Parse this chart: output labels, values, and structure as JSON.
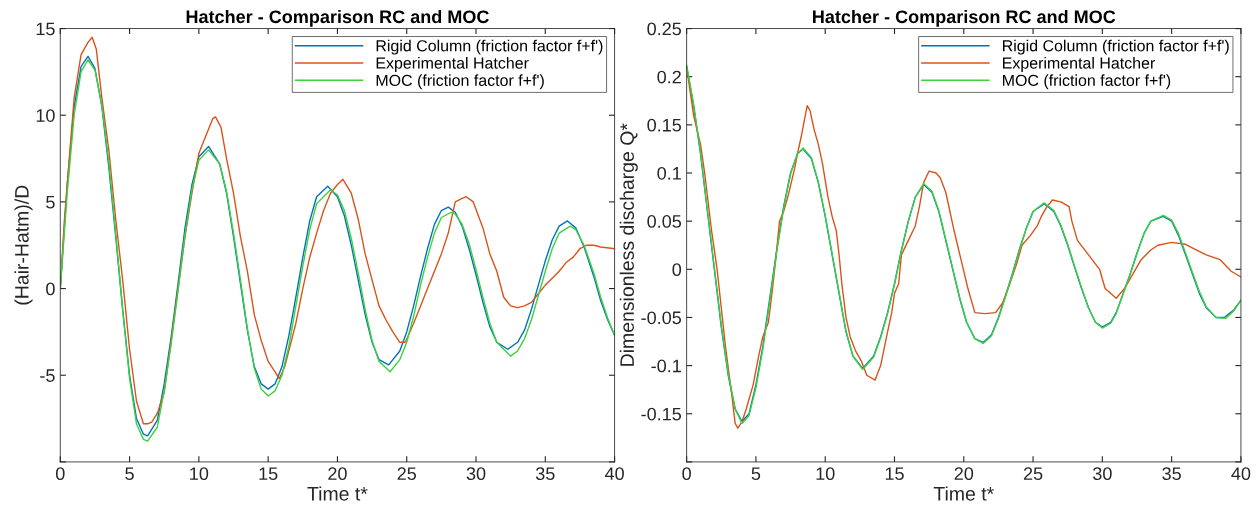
{
  "chart_data": [
    {
      "type": "line",
      "title": "Hatcher - Comparison RC and MOC",
      "xlabel": "Time t*",
      "ylabel": "(Hair-Hatm)/D",
      "xlim": [
        0,
        40
      ],
      "xticks": [
        0,
        5,
        10,
        15,
        20,
        25,
        30,
        35,
        40
      ],
      "ylim": [
        -10,
        15
      ],
      "yticks": [
        {
          "value": -10,
          "label": null
        },
        -5,
        0,
        5,
        10,
        15
      ],
      "legend": "top right",
      "grid": false,
      "marker": "none",
      "line_style": "solid",
      "series": [
        {
          "name": "Rigid Column (friction factor f+f')",
          "color": "#0072bd",
          "x": [
            0,
            0.5,
            1,
            1.5,
            2,
            2.5,
            3,
            3.5,
            4,
            4.5,
            5,
            5.5,
            6,
            6.3,
            7,
            7.5,
            8,
            8.5,
            9,
            9.5,
            10,
            10.7,
            11.5,
            12,
            12.5,
            13,
            13.5,
            14,
            14.5,
            15,
            15.5,
            16,
            16.5,
            17,
            17.5,
            18,
            18.5,
            19.3,
            20,
            20.5,
            21,
            21.5,
            22,
            22.5,
            23,
            23.7,
            24.5,
            25,
            25.5,
            26,
            26.5,
            27,
            27.5,
            28,
            28.5,
            29,
            29.5,
            30,
            30.5,
            31,
            31.5,
            32.3,
            33,
            33.5,
            34,
            34.5,
            35,
            35.5,
            36,
            36.6,
            37.2,
            37.8,
            38.5,
            39,
            39.5,
            40
          ],
          "values": [
            0,
            6,
            10.5,
            12.8,
            13.4,
            12.7,
            10.5,
            7,
            3,
            -1.2,
            -5,
            -7.5,
            -8.4,
            -8.5,
            -7.6,
            -5.5,
            -2.8,
            0.3,
            3.5,
            6,
            7.6,
            8.2,
            7.2,
            5.5,
            3,
            0.3,
            -2.4,
            -4.5,
            -5.5,
            -5.8,
            -5.5,
            -4.5,
            -2.7,
            -0.5,
            1.8,
            3.9,
            5.3,
            5.9,
            5.3,
            4.2,
            2.5,
            0.5,
            -1.5,
            -3.1,
            -4.1,
            -4.4,
            -3.6,
            -2.5,
            -1,
            0.7,
            2.3,
            3.7,
            4.5,
            4.7,
            4.4,
            3.6,
            2.3,
            0.8,
            -0.8,
            -2.2,
            -3.1,
            -3.5,
            -3.1,
            -2.4,
            -1.2,
            0.2,
            1.6,
            2.8,
            3.6,
            3.9,
            3.5,
            2.4,
            0.7,
            -0.7,
            -1.8,
            -2.7
          ]
        },
        {
          "name": "Experimental Hatcher",
          "color": "#d95319",
          "x": [
            0,
            0.3,
            0.7,
            1,
            1.5,
            2,
            2.3,
            2.6,
            3,
            3.5,
            4,
            4.5,
            5,
            5.5,
            6,
            6.3,
            6.6,
            7,
            7.5,
            8,
            8.5,
            9,
            9.5,
            10,
            10.5,
            11,
            11.2,
            11.6,
            12,
            12.5,
            13,
            13.5,
            14,
            14.5,
            15,
            15.5,
            15.8,
            16.2,
            17,
            17.5,
            18,
            18.5,
            19,
            19.5,
            20,
            20.4,
            21,
            21.5,
            22,
            22.5,
            23,
            23.5,
            24,
            24.5,
            24.9,
            25.5,
            26,
            26.5,
            27,
            27.5,
            28,
            28.5,
            29,
            29.3,
            29.8,
            30.5,
            31,
            31.5,
            32,
            32.5,
            33,
            33.5,
            34,
            34.5,
            35,
            35.5,
            36,
            36.5,
            37,
            37.5,
            38,
            38.5,
            39,
            40
          ],
          "values": [
            0,
            4,
            8,
            11,
            13.5,
            14.2,
            14.5,
            13.8,
            11,
            8,
            4,
            0.5,
            -3.5,
            -6.5,
            -7.8,
            -7.8,
            -7.7,
            -7.2,
            -6,
            -3,
            0,
            3,
            5.5,
            7.8,
            8.8,
            9.8,
            9.9,
            9.3,
            7.5,
            5.5,
            3,
            1,
            -1.5,
            -3,
            -4.2,
            -4.8,
            -5.2,
            -4.5,
            -2,
            0,
            1.8,
            3.2,
            4.5,
            5.5,
            6,
            6.3,
            5.5,
            4,
            2,
            0.5,
            -1,
            -1.8,
            -2.5,
            -3.1,
            -3.1,
            -2,
            -1,
            0,
            1,
            2,
            3.2,
            5,
            5.2,
            5.3,
            5,
            3.5,
            2,
            1,
            -0.5,
            -1,
            -1.1,
            -1,
            -0.8,
            -0.3,
            0.2,
            0.6,
            1,
            1.5,
            1.8,
            2.3,
            2.5,
            2.5,
            2.4,
            2.3
          ]
        },
        {
          "name": "MOC (friction factor f+f')",
          "color": "#3ed13e",
          "x": [
            0,
            0.5,
            1,
            1.5,
            2,
            2.5,
            3,
            3.5,
            4,
            4.5,
            5,
            5.5,
            6,
            6.3,
            7,
            7.5,
            8,
            8.5,
            9,
            9.5,
            10,
            10.7,
            11.5,
            12,
            12.5,
            13,
            13.5,
            14,
            14.5,
            15,
            15.5,
            16,
            16.5,
            17,
            17.5,
            18,
            18.5,
            19.5,
            20,
            20.5,
            21,
            21.5,
            22,
            22.5,
            23,
            23.8,
            24.5,
            25,
            25.5,
            26,
            26.5,
            27,
            27.5,
            28.2,
            28.5,
            29,
            29.5,
            30,
            30.5,
            31,
            31.5,
            32.5,
            33,
            33.5,
            34,
            34.5,
            35,
            35.5,
            36,
            36.8,
            37.2,
            37.8,
            38.5,
            39,
            39.5,
            40
          ],
          "values": [
            0,
            5.5,
            10,
            12.5,
            13.2,
            12.6,
            10.6,
            7.3,
            3.2,
            -1.2,
            -5.2,
            -7.8,
            -8.7,
            -8.8,
            -8,
            -5.9,
            -3.2,
            -0.1,
            3.1,
            5.7,
            7.4,
            8,
            7.2,
            5.6,
            3.2,
            0.5,
            -2.3,
            -4.6,
            -5.8,
            -6.2,
            -5.9,
            -5,
            -3.3,
            -1,
            1.3,
            3.4,
            4.9,
            5.7,
            5.4,
            4.5,
            2.9,
            0.9,
            -1.2,
            -3,
            -4.2,
            -4.8,
            -4.1,
            -3.1,
            -1.6,
            0.2,
            1.8,
            3.2,
            4.1,
            4.4,
            4.3,
            3.7,
            2.6,
            1.1,
            -0.5,
            -2,
            -3.1,
            -3.9,
            -3.6,
            -2.9,
            -1.8,
            -0.4,
            1,
            2.3,
            3.2,
            3.6,
            3.4,
            2.5,
            0.9,
            -0.5,
            -1.7,
            -2.7
          ]
        }
      ]
    },
    {
      "type": "line",
      "title": "Hatcher - Comparison RC and MOC",
      "xlabel": "Time t*",
      "ylabel": "Dimensionless discharge Q*",
      "xlim": [
        0,
        40
      ],
      "xticks": [
        0,
        5,
        10,
        15,
        20,
        25,
        30,
        35,
        40
      ],
      "ylim": [
        -0.2,
        0.25
      ],
      "yticks": [
        {
          "value": -0.2,
          "label": null
        },
        -0.15,
        -0.1,
        -0.05,
        0,
        0.05,
        0.1,
        0.15,
        0.2,
        0.25
      ],
      "legend": "top right",
      "grid": false,
      "marker": "none",
      "line_style": "solid",
      "series": [
        {
          "name": "Rigid Column (friction factor f+f')",
          "color": "#0072bd",
          "x": [
            0,
            0.5,
            1,
            1.5,
            2,
            2.5,
            3,
            3.5,
            4,
            4.5,
            5,
            5.5,
            6,
            6.5,
            7,
            7.5,
            8,
            8.4,
            9,
            9.5,
            10,
            10.5,
            11,
            11.5,
            12,
            12.7,
            13.5,
            14,
            14.5,
            15,
            15.5,
            16,
            16.5,
            17.1,
            17.7,
            18.2,
            18.7,
            19.2,
            19.7,
            20.2,
            20.8,
            21.4,
            22,
            22.5,
            23,
            23.5,
            24,
            24.5,
            25,
            25.8,
            26.5,
            27,
            27.5,
            28,
            28.5,
            29,
            29.5,
            30,
            30.6,
            31,
            31.5,
            32,
            32.5,
            33,
            33.5,
            34.4,
            35,
            35.5,
            36,
            36.5,
            37,
            37.5,
            38.2,
            38.8,
            39.5,
            40
          ],
          "values": [
            0.21,
            0.17,
            0.12,
            0.06,
            0,
            -0.06,
            -0.11,
            -0.145,
            -0.158,
            -0.15,
            -0.12,
            -0.08,
            -0.03,
            0.02,
            0.065,
            0.1,
            0.12,
            0.125,
            0.115,
            0.09,
            0.055,
            0.015,
            -0.025,
            -0.065,
            -0.09,
            -0.103,
            -0.09,
            -0.07,
            -0.045,
            -0.015,
            0.02,
            0.05,
            0.075,
            0.088,
            0.08,
            0.06,
            0.03,
            0,
            -0.03,
            -0.055,
            -0.072,
            -0.076,
            -0.068,
            -0.05,
            -0.028,
            -0.005,
            0.02,
            0.042,
            0.06,
            0.068,
            0.06,
            0.045,
            0.025,
            0.002,
            -0.02,
            -0.04,
            -0.055,
            -0.06,
            -0.055,
            -0.045,
            -0.025,
            -0.005,
            0.017,
            0.037,
            0.05,
            0.055,
            0.05,
            0.035,
            0.015,
            -0.005,
            -0.025,
            -0.04,
            -0.05,
            -0.05,
            -0.042,
            -0.032
          ]
        },
        {
          "name": "Experimental Hatcher",
          "color": "#d95319",
          "x": [
            0,
            0.5,
            1,
            1.3,
            1.8,
            2.2,
            2.8,
            3.3,
            3.5,
            3.7,
            4,
            4.3,
            4.8,
            5.2,
            5.5,
            5.9,
            6.2,
            6.5,
            6.7,
            7,
            7.3,
            7.8,
            8,
            8.3,
            8.7,
            8.9,
            9.2,
            9.5,
            9.8,
            10.2,
            10.5,
            10.8,
            11,
            11.2,
            11.5,
            11.8,
            12.2,
            12.6,
            13,
            13.6,
            14,
            14.5,
            14.8,
            15,
            15.3,
            15.5,
            16,
            16.5,
            16.8,
            17.1,
            17.5,
            18,
            18.3,
            18.7,
            19,
            19.3,
            19.8,
            20.3,
            20.8,
            21.5,
            22.3,
            22.8,
            23.2,
            23.8,
            24.2,
            24.8,
            25.3,
            25.6,
            26,
            26.4,
            27,
            27.6,
            27.8,
            28.2,
            29,
            29.8,
            30.2,
            31,
            31.6,
            32,
            32.8,
            33.5,
            34,
            35,
            36,
            36.8,
            37.5,
            38.5,
            39.3,
            40
          ],
          "values": [
            0.21,
            0.16,
            0.13,
            0.1,
            0.04,
            0,
            -0.08,
            -0.135,
            -0.16,
            -0.165,
            -0.158,
            -0.145,
            -0.12,
            -0.09,
            -0.07,
            -0.055,
            -0.02,
            0.02,
            0.05,
            0.06,
            0.075,
            0.105,
            0.12,
            0.14,
            0.17,
            0.165,
            0.145,
            0.13,
            0.11,
            0.075,
            0.055,
            0.04,
            0.015,
            -0.015,
            -0.05,
            -0.07,
            -0.085,
            -0.095,
            -0.11,
            -0.115,
            -0.1,
            -0.065,
            -0.045,
            -0.025,
            -0.015,
            0.015,
            0.03,
            0.045,
            0.065,
            0.09,
            0.102,
            0.1,
            0.095,
            0.08,
            0.06,
            0.04,
            0.01,
            -0.02,
            -0.045,
            -0.046,
            -0.045,
            -0.035,
            -0.02,
            0.005,
            0.025,
            0.035,
            0.045,
            0.055,
            0.065,
            0.072,
            0.07,
            0.065,
            0.05,
            0.03,
            0.015,
            0,
            -0.02,
            -0.03,
            -0.02,
            -0.01,
            0.01,
            0.02,
            0.025,
            0.028,
            0.026,
            0.02,
            0.015,
            0.01,
            -0.002,
            -0.008
          ]
        },
        {
          "name": "MOC (friction factor f+f')",
          "color": "#3ed13e",
          "x": [
            0,
            0.5,
            1,
            1.5,
            2,
            2.5,
            3,
            3.5,
            4,
            4.5,
            5,
            5.5,
            6,
            6.5,
            7,
            7.5,
            8,
            8.4,
            9,
            9.5,
            10,
            10.5,
            11,
            11.5,
            12,
            12.7,
            13.5,
            14,
            14.5,
            15,
            15.5,
            16,
            16.5,
            17.1,
            17.7,
            18.2,
            18.7,
            19.2,
            19.7,
            20.2,
            20.8,
            21.4,
            22,
            22.5,
            23,
            23.5,
            24,
            24.5,
            25,
            25.8,
            26.5,
            27,
            27.5,
            28,
            28.5,
            29,
            29.5,
            30,
            30.6,
            31,
            31.5,
            32,
            32.5,
            33,
            33.5,
            34.4,
            35,
            35.5,
            36,
            36.5,
            37,
            37.5,
            38.2,
            38.9,
            39.5,
            40
          ],
          "values": [
            0.212,
            0.172,
            0.122,
            0.062,
            0.002,
            -0.058,
            -0.108,
            -0.145,
            -0.16,
            -0.152,
            -0.123,
            -0.083,
            -0.033,
            0.018,
            0.063,
            0.099,
            0.12,
            0.126,
            0.116,
            0.091,
            0.056,
            0.016,
            -0.024,
            -0.064,
            -0.09,
            -0.104,
            -0.091,
            -0.071,
            -0.046,
            -0.016,
            0.019,
            0.05,
            0.075,
            0.089,
            0.081,
            0.061,
            0.031,
            0.001,
            -0.029,
            -0.055,
            -0.072,
            -0.077,
            -0.069,
            -0.051,
            -0.029,
            -0.006,
            0.019,
            0.042,
            0.06,
            0.069,
            0.061,
            0.046,
            0.026,
            0.003,
            -0.019,
            -0.04,
            -0.055,
            -0.061,
            -0.056,
            -0.046,
            -0.026,
            -0.006,
            0.016,
            0.037,
            0.05,
            0.056,
            0.051,
            0.037,
            0.017,
            -0.003,
            -0.023,
            -0.039,
            -0.05,
            -0.051,
            -0.043,
            -0.032
          ]
        }
      ]
    }
  ]
}
